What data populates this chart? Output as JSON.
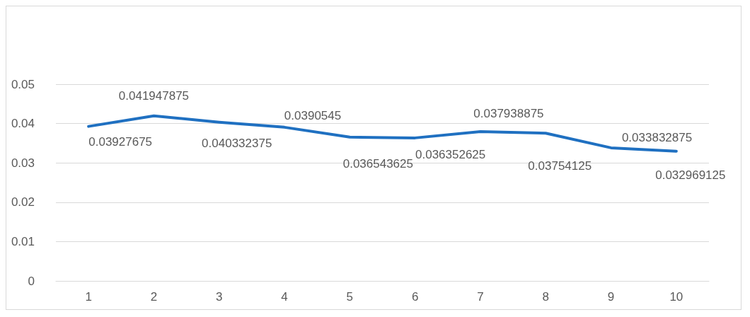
{
  "chart_data": {
    "type": "line",
    "categories": [
      "1",
      "2",
      "3",
      "4",
      "5",
      "6",
      "7",
      "8",
      "9",
      "10"
    ],
    "series": [
      {
        "color": "#1f70c1",
        "values": [
          0.03927675,
          0.041947875,
          0.040332375,
          0.0390545,
          0.036543625,
          0.036352625,
          0.037938875,
          0.03754125,
          0.033832875,
          0.032969125
        ]
      }
    ],
    "ylim": [
      0,
      0.05
    ],
    "yticks": [
      0,
      0.01,
      0.02,
      0.03,
      0.04,
      0.05
    ],
    "grid": "y",
    "data_labels": true,
    "line_style": "solid"
  }
}
